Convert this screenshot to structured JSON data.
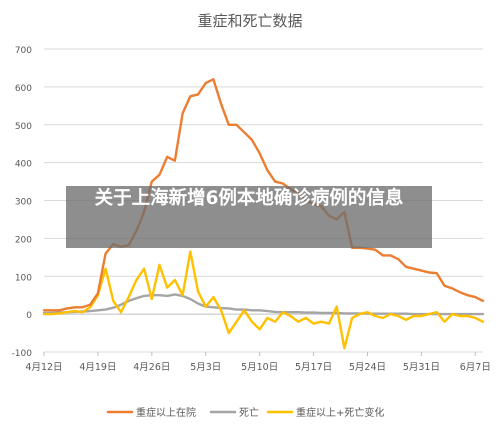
{
  "overlay": {
    "headline": "关于上海新增6例本地确诊病例的信息"
  },
  "chart_data": {
    "type": "line",
    "title": "重症和死亡数据",
    "xlabel": "",
    "ylabel": "",
    "ylim": [
      -100,
      700
    ],
    "y_ticks": [
      -100,
      0,
      100,
      200,
      300,
      400,
      500,
      600,
      700
    ],
    "x_tick_labels": [
      "4月12日",
      "4月19日",
      "4月26日",
      "5月3日",
      "5月10日",
      "5月17日",
      "5月24日",
      "5月31日",
      "6月7日"
    ],
    "x_tick_index": [
      0,
      7,
      14,
      21,
      28,
      35,
      42,
      49,
      56
    ],
    "grid": true,
    "legend_position": "bottom",
    "series": [
      {
        "name": "重症以上在院",
        "color": "#ED7D31",
        "values": [
          10,
          10,
          10,
          15,
          18,
          18,
          25,
          55,
          160,
          185,
          178,
          182,
          220,
          270,
          350,
          368,
          415,
          405,
          530,
          575,
          580,
          610,
          620,
          555,
          500,
          500,
          480,
          460,
          425,
          380,
          350,
          345,
          330,
          320,
          300,
          290,
          285,
          260,
          250,
          270,
          175,
          175,
          173,
          170,
          155,
          155,
          145,
          125,
          120,
          115,
          110,
          108,
          75,
          68,
          58,
          50,
          45,
          35
        ]
      },
      {
        "name": "死亡",
        "color": "#A5A5A5",
        "values": [
          3,
          3,
          4,
          5,
          6,
          7,
          8,
          10,
          12,
          17,
          25,
          35,
          42,
          48,
          50,
          50,
          48,
          52,
          48,
          40,
          28,
          20,
          18,
          16,
          15,
          12,
          12,
          10,
          10,
          8,
          6,
          5,
          5,
          5,
          4,
          4,
          3,
          3,
          3,
          2,
          2,
          2,
          1,
          1,
          1,
          1,
          1,
          1,
          0,
          0,
          0,
          0,
          0,
          0,
          0,
          0,
          0,
          0
        ]
      },
      {
        "name": "重症以上+死亡变化",
        "color": "#FFC000",
        "values": [
          0,
          0,
          2,
          5,
          8,
          5,
          18,
          50,
          120,
          35,
          5,
          45,
          90,
          120,
          40,
          130,
          70,
          90,
          50,
          165,
          60,
          20,
          45,
          10,
          -50,
          -20,
          10,
          -20,
          -40,
          -10,
          -20,
          5,
          -5,
          -20,
          -10,
          -25,
          -20,
          -25,
          20,
          -90,
          -10,
          0,
          5,
          -5,
          -10,
          0,
          -5,
          -15,
          -5,
          -5,
          0,
          5,
          -20,
          0,
          -5,
          -5,
          -10,
          -20
        ]
      }
    ]
  }
}
